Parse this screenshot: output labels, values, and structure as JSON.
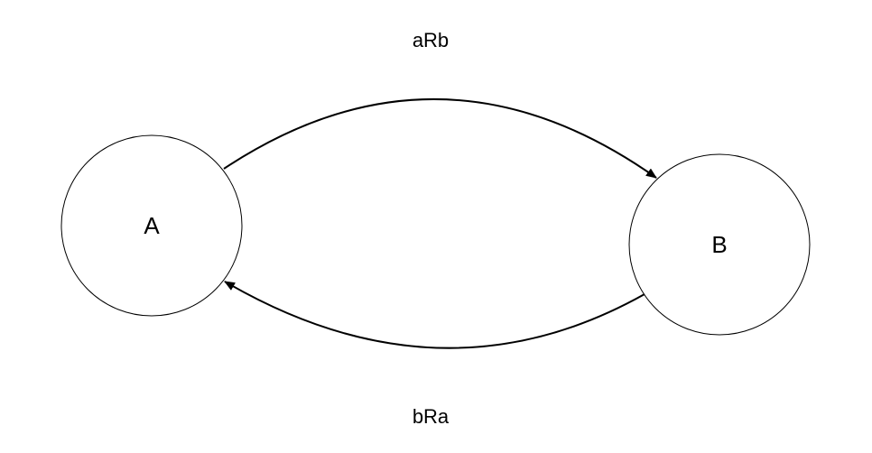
{
  "diagram": {
    "nodes": [
      {
        "id": "A",
        "label": "A"
      },
      {
        "id": "B",
        "label": "B"
      }
    ],
    "edges": [
      {
        "from": "A",
        "to": "B",
        "label": "aRb"
      },
      {
        "from": "B",
        "to": "A",
        "label": "bRa"
      }
    ],
    "colors": {
      "stroke": "#000000",
      "fill": "#ffffff"
    }
  }
}
